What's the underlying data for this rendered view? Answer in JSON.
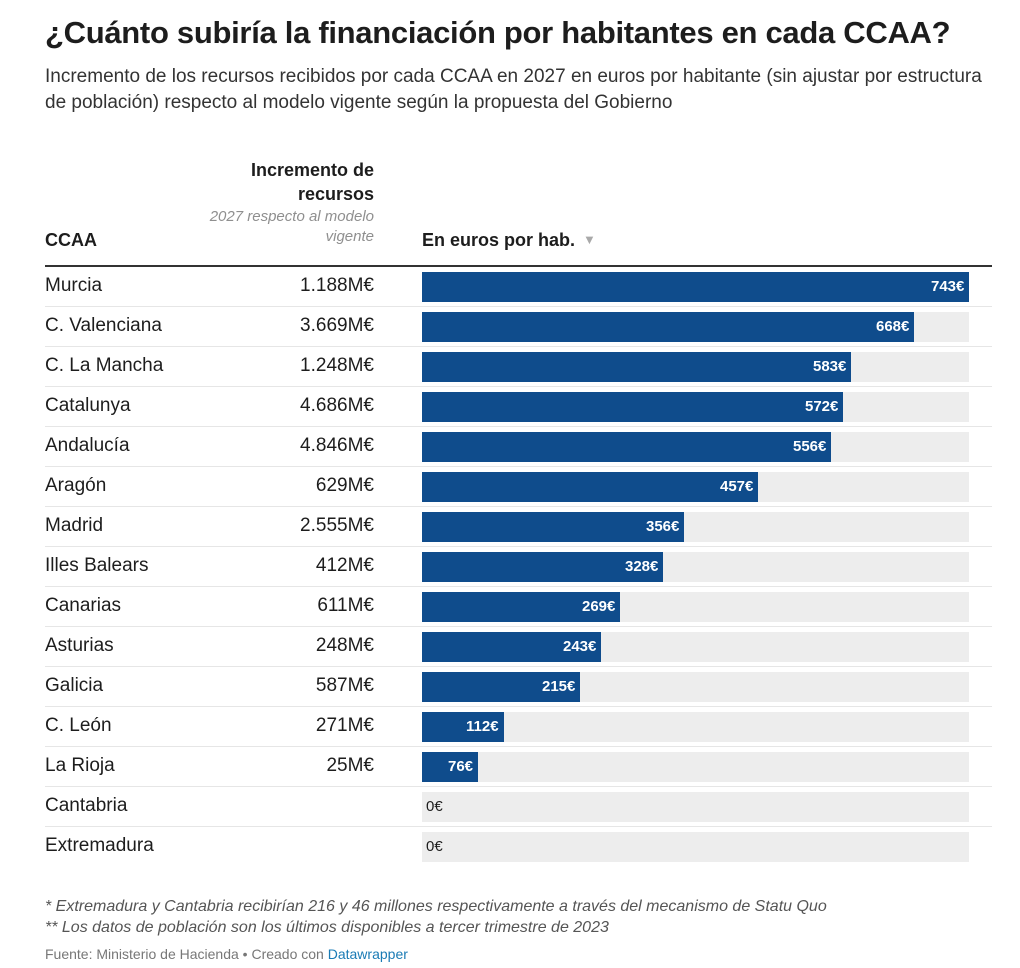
{
  "title": "¿Cuánto subiría la financiación por habitantes en cada CCAA?",
  "subtitle": "Incremento de los recursos recibidos por cada CCAA en 2027 en euros por habitante (sin ajustar por estructura de población) respecto al modelo vigente según la propuesta del Gobierno",
  "table": {
    "col_ccaa": "CCAA",
    "col_increment": "Incremento de recursos",
    "col_increment_sub": "2027 respecto al modelo vigente",
    "col_bar": "En euros por hab.",
    "sort_icon": "triangle-down-icon"
  },
  "colors": {
    "bar": "#0f4c8c",
    "bar_background": "#ededed",
    "label_inside": "#ffffff",
    "label_outside": "#1d1d1d"
  },
  "chart_data": {
    "type": "bar",
    "orientation": "horizontal",
    "xlim": [
      0,
      743
    ],
    "rows": [
      {
        "name": "Murcia",
        "increment": "1.188M€",
        "value": 743,
        "label": "743€"
      },
      {
        "name": "C. Valenciana",
        "increment": "3.669M€",
        "value": 668,
        "label": "668€"
      },
      {
        "name": "C. La Mancha",
        "increment": "1.248M€",
        "value": 583,
        "label": "583€"
      },
      {
        "name": "Catalunya",
        "increment": "4.686M€",
        "value": 572,
        "label": "572€"
      },
      {
        "name": "Andalucía",
        "increment": "4.846M€",
        "value": 556,
        "label": "556€"
      },
      {
        "name": "Aragón",
        "increment": "629M€",
        "value": 457,
        "label": "457€"
      },
      {
        "name": "Madrid",
        "increment": "2.555M€",
        "value": 356,
        "label": "356€"
      },
      {
        "name": "Illes Balears",
        "increment": "412M€",
        "value": 328,
        "label": "328€"
      },
      {
        "name": "Canarias",
        "increment": "611M€",
        "value": 269,
        "label": "269€"
      },
      {
        "name": "Asturias",
        "increment": "248M€",
        "value": 243,
        "label": "243€"
      },
      {
        "name": "Galicia",
        "increment": "587M€",
        "value": 215,
        "label": "215€"
      },
      {
        "name": "C. León",
        "increment": "271M€",
        "value": 112,
        "label": "112€"
      },
      {
        "name": "La Rioja",
        "increment": "25M€",
        "value": 76,
        "label": "76€"
      },
      {
        "name": "Cantabria",
        "increment": "",
        "value": 0,
        "label": "0€"
      },
      {
        "name": "Extremadura",
        "increment": "",
        "value": 0,
        "label": "0€"
      }
    ]
  },
  "notes": {
    "note1": "* Extremadura y Cantabria recibirían 216 y 46 millones respectivamente a través del mecanismo de Statu Quo",
    "note2": "** Los datos de población son los últimos disponibles a tercer trimestre de 2023",
    "source_prefix": "Fuente: Ministerio de Hacienda • Creado con ",
    "source_link": "Datawrapper"
  }
}
